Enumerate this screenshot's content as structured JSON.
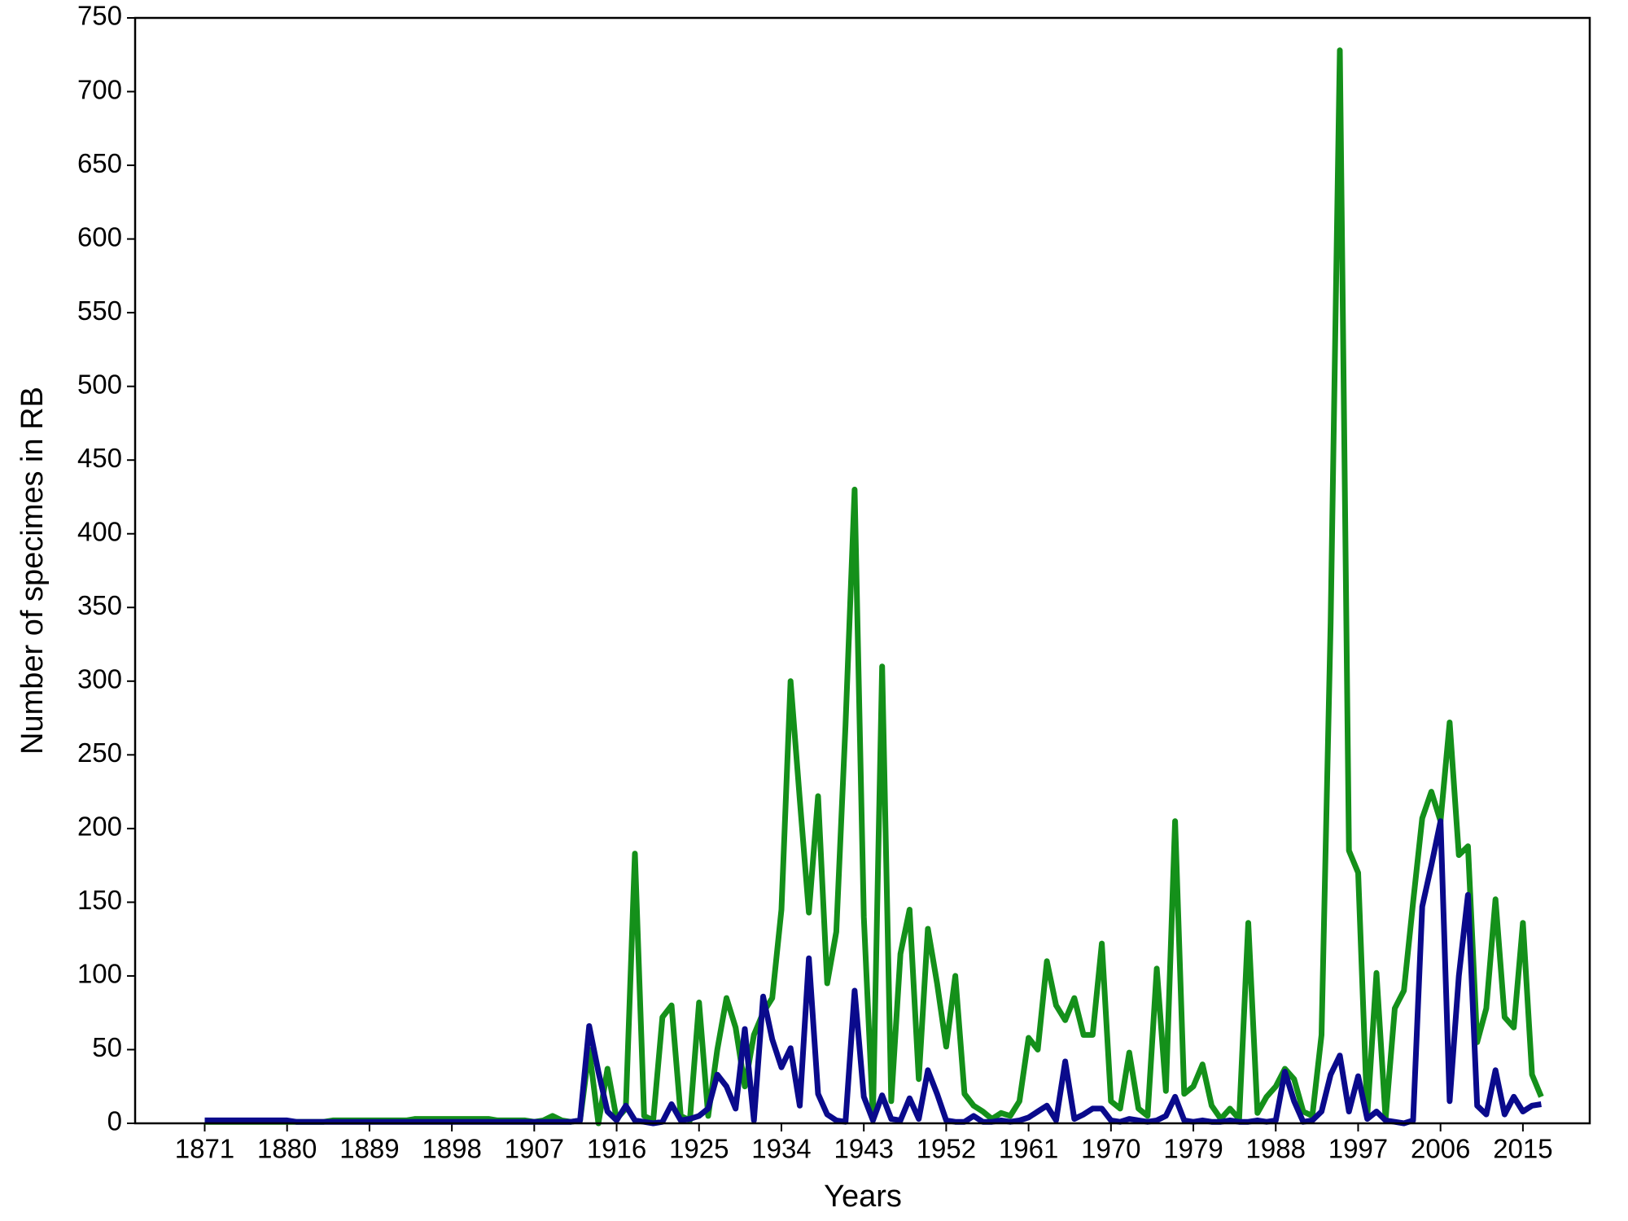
{
  "chart_data": {
    "type": "line",
    "x_label": "Years",
    "y_label": "Number of specimes in RB",
    "x": [
      1871,
      1872,
      1873,
      1874,
      1875,
      1876,
      1877,
      1878,
      1879,
      1880,
      1881,
      1882,
      1883,
      1884,
      1885,
      1886,
      1887,
      1888,
      1889,
      1890,
      1891,
      1892,
      1893,
      1894,
      1895,
      1896,
      1897,
      1898,
      1899,
      1900,
      1901,
      1902,
      1903,
      1904,
      1905,
      1906,
      1907,
      1908,
      1909,
      1910,
      1911,
      1912,
      1913,
      1914,
      1915,
      1916,
      1917,
      1918,
      1919,
      1920,
      1921,
      1922,
      1923,
      1924,
      1925,
      1926,
      1927,
      1928,
      1929,
      1930,
      1931,
      1932,
      1933,
      1934,
      1935,
      1936,
      1937,
      1938,
      1939,
      1940,
      1941,
      1942,
      1943,
      1944,
      1945,
      1946,
      1947,
      1948,
      1949,
      1950,
      1951,
      1952,
      1953,
      1954,
      1955,
      1956,
      1957,
      1958,
      1959,
      1960,
      1961,
      1962,
      1963,
      1964,
      1965,
      1966,
      1967,
      1968,
      1969,
      1970,
      1971,
      1972,
      1973,
      1974,
      1975,
      1976,
      1977,
      1978,
      1979,
      1980,
      1981,
      1982,
      1983,
      1984,
      1985,
      1986,
      1987,
      1988,
      1989,
      1990,
      1991,
      1992,
      1993,
      1994,
      1995,
      1996,
      1997,
      1998,
      1999,
      2000,
      2001,
      2002,
      2003,
      2004,
      2005,
      2006,
      2007,
      2008,
      2009,
      2010,
      2011,
      2012,
      2013,
      2014,
      2015,
      2016,
      2017
    ],
    "series": [
      {
        "color": "#14901a",
        "values": [
          1,
          1,
          1,
          1,
          1,
          1,
          1,
          1,
          1,
          1,
          1,
          1,
          1,
          1,
          2,
          2,
          2,
          2,
          2,
          2,
          2,
          2,
          2,
          3,
          3,
          3,
          3,
          3,
          3,
          3,
          3,
          3,
          2,
          2,
          2,
          2,
          1,
          2,
          5,
          2,
          1,
          2,
          50,
          0,
          37,
          3,
          10,
          183,
          5,
          2,
          72,
          80,
          5,
          2,
          82,
          5,
          50,
          85,
          65,
          25,
          60,
          75,
          85,
          145,
          300,
          220,
          143,
          222,
          95,
          130,
          270,
          430,
          140,
          5,
          310,
          15,
          115,
          145,
          30,
          132,
          95,
          52,
          100,
          20,
          12,
          8,
          3,
          7,
          5,
          15,
          58,
          50,
          110,
          80,
          70,
          85,
          60,
          60,
          122,
          15,
          10,
          48,
          10,
          5,
          105,
          22,
          205,
          20,
          25,
          40,
          12,
          3,
          10,
          3,
          136,
          7,
          18,
          25,
          37,
          30,
          8,
          5,
          60,
          340,
          728,
          185,
          170,
          5,
          102,
          3,
          78,
          90,
          150,
          207,
          225,
          205,
          272,
          182,
          188,
          55,
          78,
          152,
          72,
          65,
          136,
          33,
          18
        ]
      },
      {
        "color": "#0a0a8c",
        "values": [
          2,
          2,
          2,
          2,
          2,
          2,
          2,
          2,
          2,
          2,
          1,
          1,
          1,
          1,
          1,
          1,
          1,
          1,
          1,
          1,
          1,
          1,
          1,
          1,
          1,
          1,
          1,
          1,
          1,
          1,
          1,
          1,
          1,
          1,
          1,
          1,
          1,
          1,
          1,
          1,
          1,
          2,
          66,
          35,
          8,
          2,
          12,
          2,
          1,
          0,
          1,
          13,
          2,
          3,
          5,
          10,
          33,
          25,
          10,
          64,
          2,
          86,
          57,
          38,
          51,
          12,
          112,
          20,
          6,
          2,
          1,
          90,
          18,
          2,
          19,
          3,
          2,
          17,
          3,
          36,
          20,
          2,
          1,
          1,
          5,
          1,
          1,
          2,
          1,
          2,
          4,
          8,
          12,
          2,
          42,
          3,
          6,
          10,
          10,
          2,
          1,
          3,
          2,
          1,
          2,
          5,
          18,
          2,
          1,
          2,
          1,
          1,
          2,
          1,
          1,
          2,
          1,
          2,
          35,
          15,
          1,
          2,
          8,
          33,
          46,
          8,
          32,
          3,
          8,
          2,
          1,
          0,
          2,
          147,
          175,
          205,
          15,
          100,
          155,
          12,
          6,
          36,
          6,
          18,
          8,
          12,
          13
        ]
      }
    ],
    "xlim": [
      1863.4,
      2022.3
    ],
    "xticks": [
      1871,
      1880,
      1889,
      1898,
      1907,
      1916,
      1925,
      1934,
      1943,
      1952,
      1961,
      1970,
      1979,
      1988,
      1997,
      2006,
      2015
    ],
    "ylim": [
      0,
      750
    ],
    "yticks": [
      0,
      50,
      100,
      150,
      200,
      250,
      300,
      350,
      400,
      450,
      500,
      550,
      600,
      650,
      700,
      750
    ]
  }
}
